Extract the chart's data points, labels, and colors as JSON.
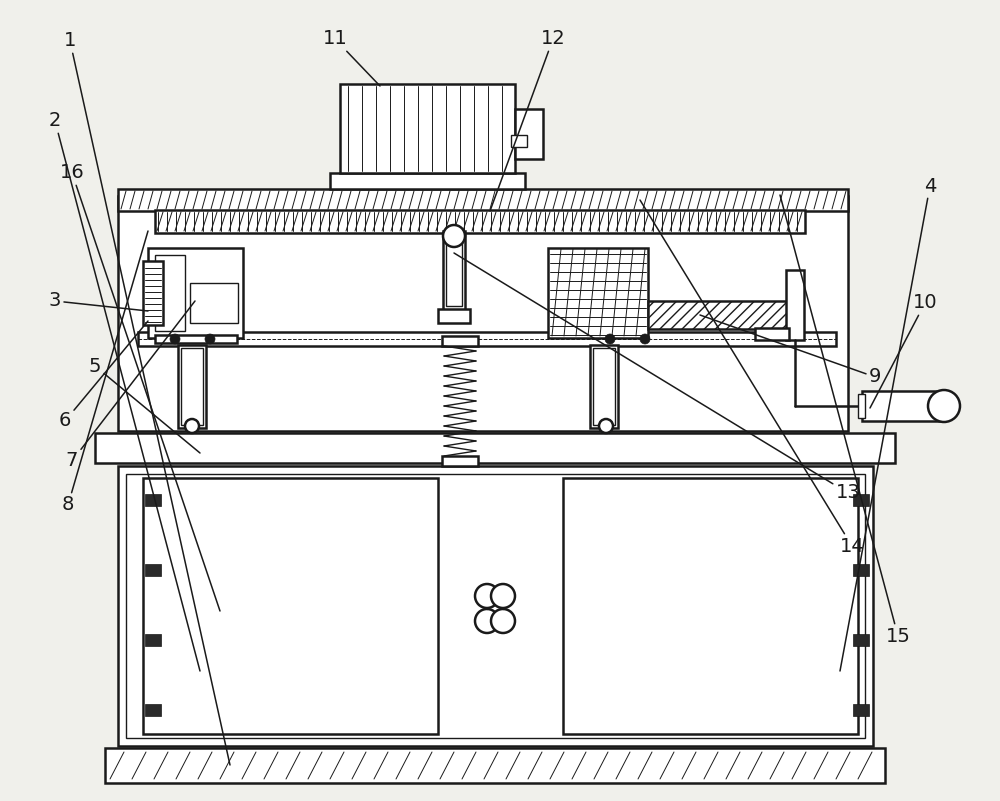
{
  "bg_color": "#f0f0eb",
  "line_color": "#1a1a1a",
  "label_color": "#1a1a1a",
  "label_fontsize": 14,
  "fig_w": 10.0,
  "fig_h": 8.01,
  "dpi": 100
}
